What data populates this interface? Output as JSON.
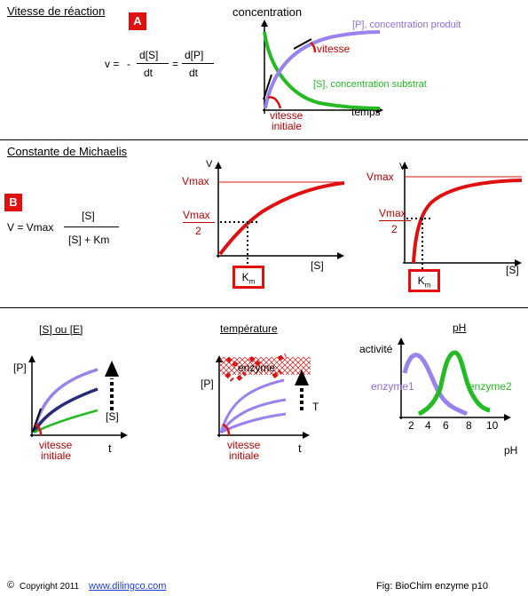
{
  "section_a": {
    "title": "Vitesse de réaction",
    "badge": "A",
    "formula": {
      "v_eq": "v =",
      "minus": "-",
      "ds": "d[S]",
      "dt1": "dt",
      "eq": "=",
      "dp": "d[P]",
      "dt2": "dt"
    },
    "graph": {
      "ylabel": "concentration",
      "xlabel": "temps",
      "product_label": "[P], concentration produit",
      "substrate_label": "[S], concentration substrat",
      "vitesse_label": "vitesse",
      "initial_label_1": "vitesse",
      "initial_label_2": "initiale"
    }
  },
  "section_b": {
    "title": "Constante de Michaelis",
    "badge": "B",
    "formula": {
      "v_eq": "V = Vmax",
      "num": "[S]",
      "den": "[S] + Km"
    },
    "graph1": {
      "ylabel": "V",
      "vmax": "Vmax",
      "half_num": "Vmax",
      "half_den": "2",
      "xlabel": "[S]",
      "km": "K",
      "km_sub": "m"
    },
    "graph2": {
      "ylabel": "V",
      "vmax": "Vmax",
      "half_num": "Vmax",
      "half_den": "2",
      "xlabel": "[S]",
      "km": "K",
      "km_sub": "m"
    }
  },
  "section_c": {
    "panel1": {
      "title": "[S] ou [E]",
      "ylabel": "[P]",
      "arrow_label": "[S]",
      "initial_1": "vitesse",
      "initial_2": "initiale",
      "xlabel": "t"
    },
    "panel2": {
      "title": "température",
      "ylabel": "[P]",
      "enzyme_label": "enzyme",
      "arrow_label": "T",
      "initial_1": "vitesse",
      "initial_2": "initiale",
      "xlabel": "t"
    },
    "panel3": {
      "title": "pH",
      "ylabel": "activité",
      "enzyme1": "enzyme1",
      "enzyme2": "enzyme2",
      "ticks": [
        "2",
        "4",
        "6",
        "8",
        "10"
      ],
      "xlabel": "pH"
    }
  },
  "footer": {
    "copyright_symbol": "©",
    "copyright": "Copyright 2011",
    "link": "www.dilingco.com",
    "fig": "Fig: BioChim enzyme p10"
  },
  "colors": {
    "red": "#e01010",
    "dark_red": "#c00000",
    "green": "#22bb22",
    "purple": "#9a82ee",
    "navy": "#2a2a7a"
  }
}
